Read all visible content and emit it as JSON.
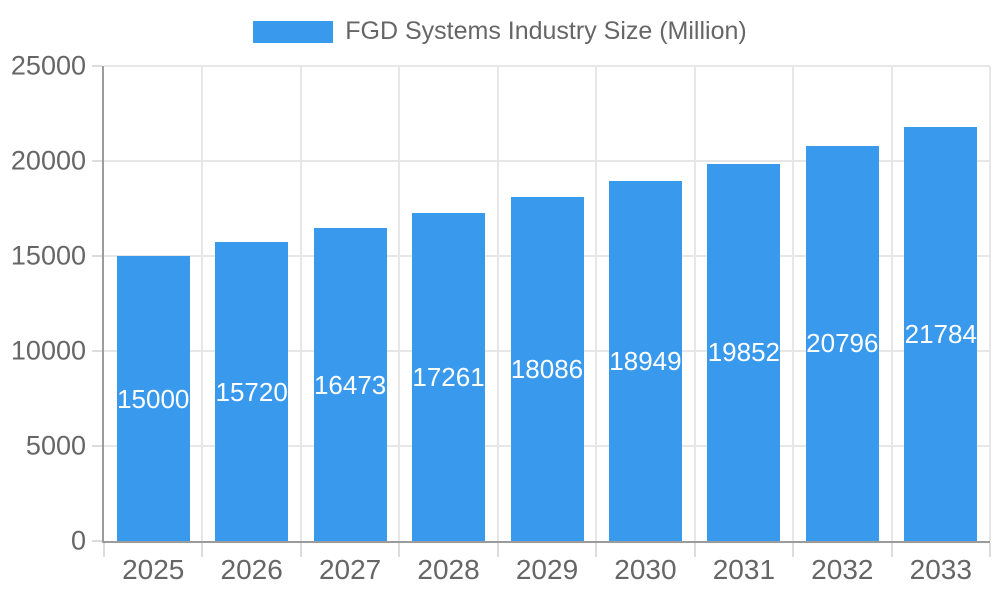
{
  "chart_data": {
    "type": "bar",
    "title": "FGD Systems Industry Size (Million)",
    "categories": [
      "2025",
      "2026",
      "2027",
      "2028",
      "2029",
      "2030",
      "2031",
      "2032",
      "2033"
    ],
    "values": [
      15000,
      15720,
      16473,
      17261,
      18086,
      18949,
      19852,
      20796,
      21784
    ],
    "series": [
      {
        "name": "FGD Systems Industry Size (Million)",
        "values": [
          15000,
          15720,
          16473,
          17261,
          18086,
          18949,
          19852,
          20796,
          21784
        ]
      }
    ],
    "xlabel": "",
    "ylabel": "",
    "ylim": [
      0,
      25000
    ],
    "yticks": [
      0,
      5000,
      10000,
      15000,
      20000,
      25000
    ],
    "grid": true,
    "legend_position": "top-center",
    "data_labels": "inside-center",
    "colors": {
      "bar": "#3999EC",
      "bar_label_text": "#ffffff",
      "axis_text": "#666666",
      "legend_text": "#666666",
      "gridline": "#e7e7e7",
      "tick": "#dcdcdc",
      "axis_line": "#9b9b9b",
      "background": "#ffffff"
    }
  }
}
